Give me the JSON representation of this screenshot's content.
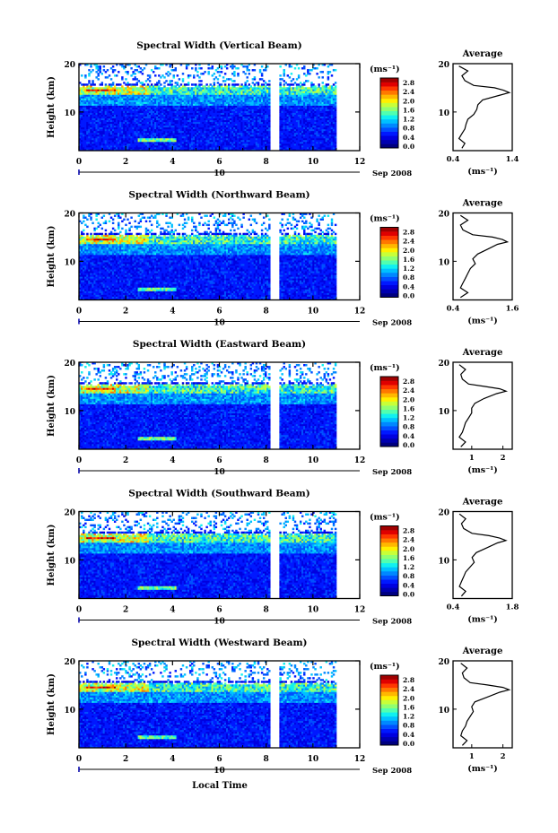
{
  "x_axis_label": "Local Time",
  "date_label": "Sep 2008",
  "day_label": "10",
  "colorbar": {
    "unit": "(ms⁻¹)",
    "ticks": [
      "0.0",
      "0.4",
      "0.8",
      "1.2",
      "1.6",
      "2.0",
      "2.4",
      "2.8"
    ],
    "colors": [
      "#00007f",
      "#0000b0",
      "#0000e0",
      "#0018ff",
      "#0050ff",
      "#0088ff",
      "#00c0ff",
      "#10f0f0",
      "#50ffb0",
      "#90ff70",
      "#c8ff38",
      "#fff000",
      "#ffb800",
      "#ff7800",
      "#ff3800",
      "#e00000",
      "#a00000"
    ]
  },
  "chart_data": [
    {
      "type": "heatmap",
      "title": "Spectral Width (Vertical Beam)",
      "ylabel": "Height (km)",
      "x_ticks": [
        "0",
        "2",
        "4",
        "6",
        "8",
        "10",
        "12"
      ],
      "y_ticks": [
        "10",
        "20"
      ],
      "xlim": [
        0,
        12
      ],
      "ylim": [
        2,
        20
      ],
      "data_gap_hours": [
        8.2,
        8.5
      ],
      "data_end_hour": 11.0,
      "profile": {
        "title": "Average",
        "xlabel": "(ms⁻¹)",
        "x_ticks": [
          "0.4",
          "1.4"
        ],
        "xlim": [
          0.4,
          1.4
        ],
        "y_ticks": [
          "10",
          "20"
        ],
        "height_km": [
          2.5,
          3.5,
          4.5,
          5.5,
          6.5,
          7.5,
          8.5,
          9.5,
          10.5,
          11.5,
          12.5,
          13.5,
          14.0,
          14.5,
          15.0,
          15.5,
          16.5,
          17.5,
          18.5,
          19.5
        ],
        "values": [
          0.55,
          0.6,
          0.5,
          0.55,
          0.6,
          0.62,
          0.65,
          0.75,
          0.8,
          0.82,
          0.9,
          1.2,
          1.35,
          1.25,
          1.1,
          0.75,
          0.6,
          0.55,
          0.65,
          0.5
        ]
      }
    },
    {
      "type": "heatmap",
      "title": "Spectral Width (Northward Beam)",
      "ylabel": "Height (km)",
      "x_ticks": [
        "0",
        "2",
        "4",
        "6",
        "8",
        "10",
        "12"
      ],
      "y_ticks": [
        "10",
        "20"
      ],
      "xlim": [
        0,
        12
      ],
      "ylim": [
        2,
        20
      ],
      "data_gap_hours": [
        8.2,
        8.5
      ],
      "data_end_hour": 11.0,
      "profile": {
        "title": "Average",
        "xlabel": "(ms⁻¹)",
        "x_ticks": [
          "0.4",
          "1.6"
        ],
        "xlim": [
          0.4,
          1.6
        ],
        "y_ticks": [
          "10",
          "20"
        ],
        "height_km": [
          2.5,
          3.5,
          4.5,
          5.5,
          6.5,
          7.5,
          8.5,
          9.5,
          10.5,
          11.5,
          12.5,
          13.5,
          14.0,
          14.5,
          15.0,
          15.5,
          16.5,
          17.5,
          18.5,
          19.5
        ],
        "values": [
          0.55,
          0.7,
          0.55,
          0.6,
          0.65,
          0.7,
          0.75,
          0.85,
          0.8,
          0.9,
          1.1,
          1.3,
          1.5,
          1.4,
          1.2,
          0.8,
          0.6,
          0.55,
          0.7,
          0.55
        ]
      }
    },
    {
      "type": "heatmap",
      "title": "Spectral Width (Eastward Beam)",
      "ylabel": "Height (km)",
      "x_ticks": [
        "0",
        "2",
        "4",
        "6",
        "8",
        "10",
        "12"
      ],
      "y_ticks": [
        "10",
        "20"
      ],
      "xlim": [
        0,
        12
      ],
      "ylim": [
        2,
        20
      ],
      "data_gap_hours": [
        8.2,
        8.5
      ],
      "data_end_hour": 11.0,
      "profile": {
        "title": "Average",
        "xlabel": "(ms⁻¹)",
        "x_ticks": [
          "1",
          "2"
        ],
        "xlim": [
          0.4,
          2.3
        ],
        "y_ticks": [
          "10",
          "20"
        ],
        "height_km": [
          2.5,
          3.5,
          4.5,
          5.5,
          6.5,
          7.5,
          8.5,
          9.5,
          10.5,
          11.5,
          12.5,
          13.5,
          14.0,
          14.5,
          15.0,
          15.5,
          16.5,
          17.5,
          18.5,
          19.5
        ],
        "values": [
          0.65,
          0.8,
          0.6,
          0.7,
          0.75,
          0.8,
          0.9,
          1.0,
          1.0,
          1.1,
          1.4,
          1.8,
          2.1,
          1.9,
          1.4,
          0.9,
          0.7,
          0.65,
          0.8,
          0.6
        ]
      }
    },
    {
      "type": "heatmap",
      "title": "Spectral Width (Southward Beam)",
      "ylabel": "Height (km)",
      "x_ticks": [
        "0",
        "2",
        "4",
        "6",
        "8",
        "10",
        "12"
      ],
      "y_ticks": [
        "10",
        "20"
      ],
      "xlim": [
        0,
        12
      ],
      "ylim": [
        2,
        20
      ],
      "data_gap_hours": [
        8.2,
        8.5
      ],
      "data_end_hour": 11.0,
      "profile": {
        "title": "Average",
        "xlabel": "(ms⁻¹)",
        "x_ticks": [
          "0.4",
          "1.8"
        ],
        "xlim": [
          0.4,
          1.8
        ],
        "y_ticks": [
          "10",
          "20"
        ],
        "height_km": [
          2.5,
          3.5,
          4.5,
          5.5,
          6.5,
          7.5,
          8.5,
          9.5,
          10.5,
          11.5,
          12.5,
          13.5,
          14.0,
          14.5,
          15.0,
          15.5,
          16.5,
          17.5,
          18.5,
          19.5
        ],
        "values": [
          0.6,
          0.7,
          0.55,
          0.6,
          0.65,
          0.7,
          0.8,
          0.9,
          0.85,
          0.95,
          1.2,
          1.45,
          1.65,
          1.5,
          1.25,
          0.85,
          0.65,
          0.6,
          0.7,
          0.55
        ]
      }
    },
    {
      "type": "heatmap",
      "title": "Spectral Width (Westward Beam)",
      "ylabel": "Height (km)",
      "x_ticks": [
        "0",
        "2",
        "4",
        "6",
        "8",
        "10",
        "12"
      ],
      "y_ticks": [
        "10",
        "20"
      ],
      "xlim": [
        0,
        12
      ],
      "ylim": [
        2,
        20
      ],
      "data_gap_hours": [
        8.2,
        8.5
      ],
      "data_end_hour": 11.0,
      "profile": {
        "title": "Average",
        "xlabel": "(ms⁻¹)",
        "x_ticks": [
          "1",
          "2"
        ],
        "xlim": [
          0.4,
          2.3
        ],
        "y_ticks": [
          "10",
          "20"
        ],
        "height_km": [
          2.5,
          3.5,
          4.5,
          5.5,
          6.5,
          7.5,
          8.5,
          9.5,
          10.5,
          11.5,
          12.5,
          13.5,
          14.0,
          14.5,
          15.0,
          15.5,
          16.5,
          17.5,
          18.5,
          19.5
        ],
        "values": [
          0.7,
          0.85,
          0.65,
          0.7,
          0.8,
          0.85,
          0.95,
          1.05,
          1.0,
          1.1,
          1.5,
          1.9,
          2.2,
          2.0,
          1.5,
          0.95,
          0.75,
          0.7,
          0.85,
          0.65
        ]
      }
    }
  ]
}
